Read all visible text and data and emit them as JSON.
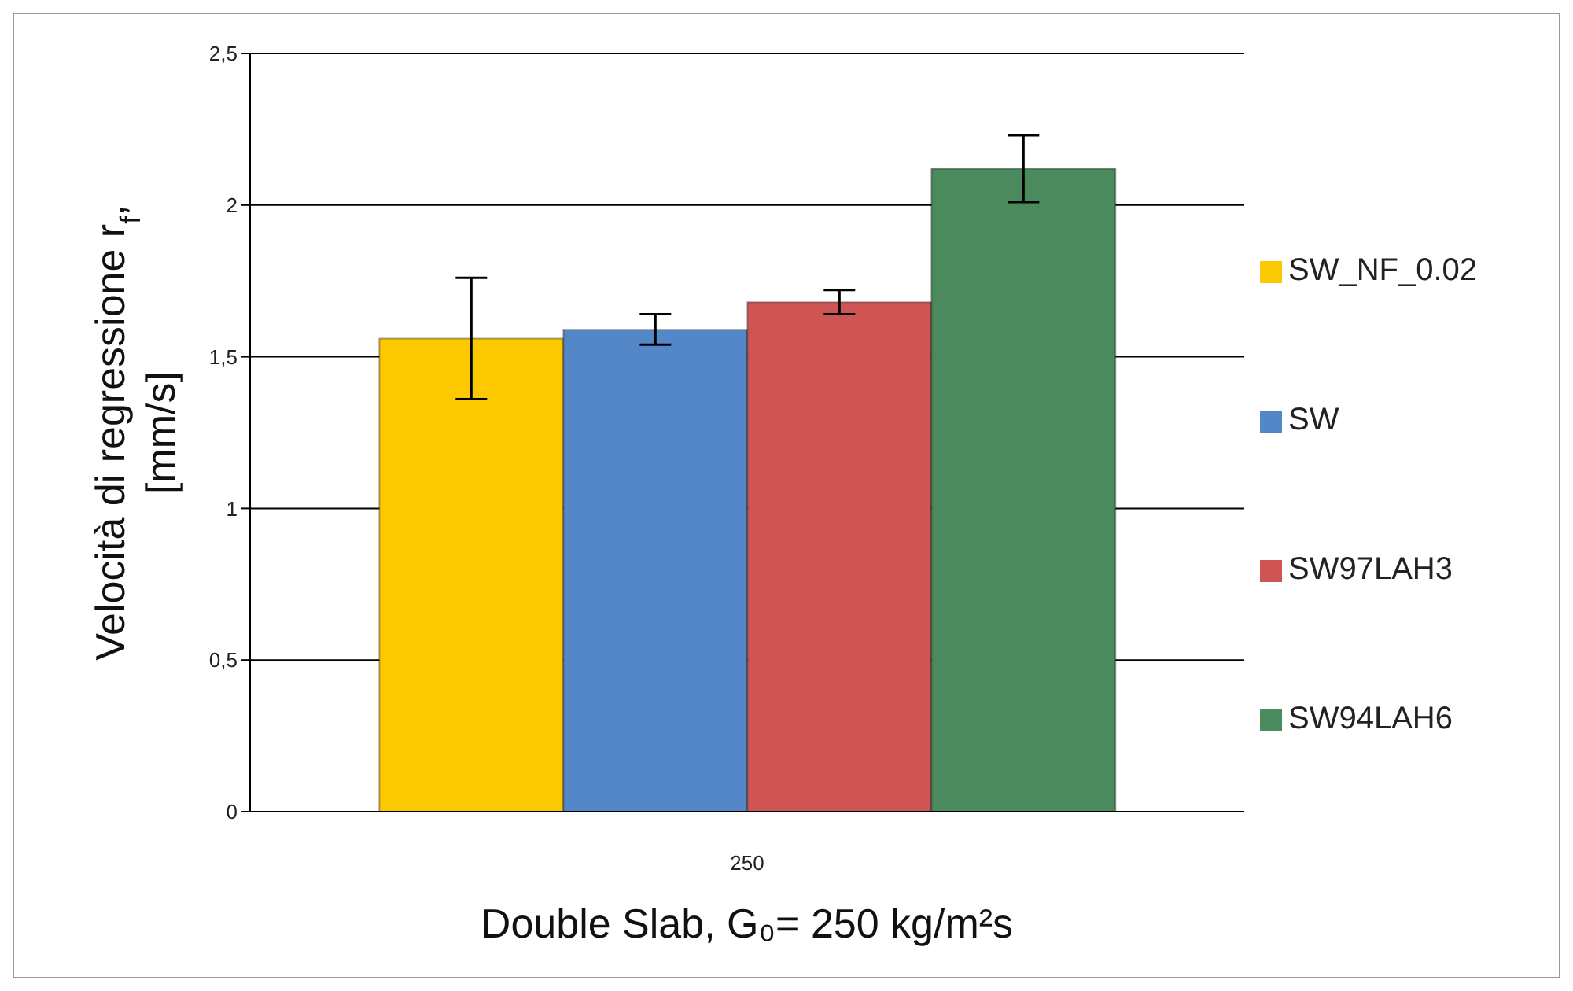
{
  "chart_data": {
    "type": "bar",
    "categories": [
      "250"
    ],
    "series": [
      {
        "name": "SW_NF_0.02",
        "color": "#fcc800",
        "values": [
          1.56
        ],
        "errors": [
          0.2
        ]
      },
      {
        "name": "SW",
        "color": "#5487c8",
        "values": [
          1.59
        ],
        "errors": [
          0.05
        ]
      },
      {
        "name": "SW97LAH3",
        "color": "#cf5555",
        "values": [
          1.68
        ],
        "errors": [
          0.04
        ]
      },
      {
        "name": "SW94LAH6",
        "color": "#4a8a5c",
        "values": [
          2.12
        ],
        "errors": [
          0.11
        ]
      }
    ],
    "xlabel": "Double Slab, G₀= 250  kg/m²s",
    "ylabel": "Velocità di regressione r$_{f}$, [mm/s]",
    "ylim": [
      0,
      2.5
    ],
    "yticks": [
      0,
      {
        "value": 0.5,
        "label": "0,5"
      },
      1,
      {
        "value": 1.5,
        "label": "1,5"
      },
      2,
      {
        "value": 2.5,
        "label": "2,5"
      }
    ],
    "grid": "y",
    "legend": "right"
  }
}
